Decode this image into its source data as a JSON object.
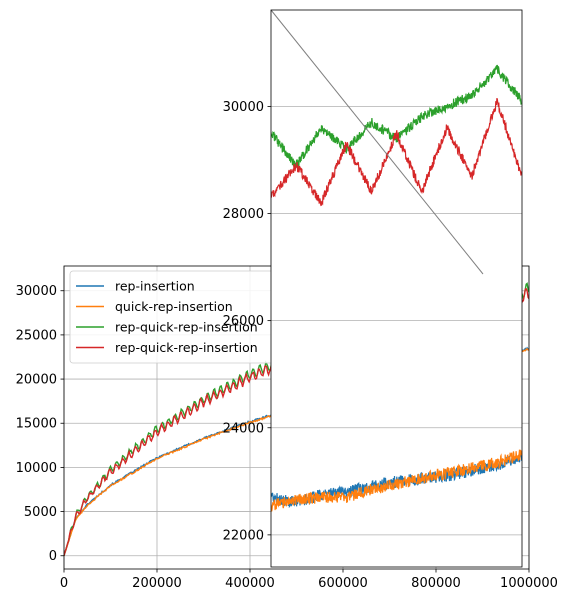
{
  "chart_data": [
    {
      "type": "line",
      "title": "",
      "xlabel": "",
      "ylabel": "",
      "xlim": [
        0,
        1000000
      ],
      "ylim": [
        -1500,
        32800
      ],
      "grid": true,
      "legend_position": "upper-left",
      "x_ticks": [
        "0",
        "200000",
        "400000",
        "600000",
        "800000",
        "1000000"
      ],
      "y_ticks": [
        "0",
        "5000",
        "10000",
        "15000",
        "20000",
        "25000",
        "30000"
      ],
      "legend_entries": [
        "rep-insertion",
        "quick-rep-insertion",
        "rep-quick-rep-insertion",
        "rep-quick-rep-insertion"
      ],
      "series": [
        {
          "name": "rep-insertion",
          "color": "#1f77b4",
          "x": [
            0,
            25000,
            50000,
            100000,
            200000,
            300000,
            400000,
            500000,
            600000,
            700000,
            800000,
            900000,
            985000,
            1000000
          ],
          "y": [
            0,
            4200,
            5800,
            8000,
            11100,
            13300,
            15200,
            16800,
            18300,
            19600,
            20900,
            22200,
            23300,
            23500
          ]
        },
        {
          "name": "quick-rep-insertion",
          "color": "#ff7f0e",
          "x": [
            0,
            25000,
            50000,
            100000,
            200000,
            300000,
            400000,
            500000,
            600000,
            700000,
            800000,
            900000,
            985000,
            1000000
          ],
          "y": [
            0,
            4100,
            5700,
            7900,
            11000,
            13200,
            15100,
            16700,
            18200,
            19500,
            20800,
            22100,
            23200,
            23400
          ]
        },
        {
          "name": "rep-quick-rep-insertion",
          "color": "#2ca02c",
          "x": [
            0,
            25000,
            50000,
            100000,
            200000,
            300000,
            400000,
            500000,
            600000,
            700000,
            800000,
            900000,
            985000,
            1000000
          ],
          "y": [
            0,
            4500,
            6600,
            9700,
            14300,
            17700,
            20500,
            22800,
            24600,
            26000,
            27200,
            28600,
            29800,
            30200
          ]
        },
        {
          "name": "rep-quick-rep-insertion",
          "color": "#d62728",
          "x": [
            0,
            25000,
            50000,
            100000,
            200000,
            300000,
            400000,
            500000,
            600000,
            700000,
            800000,
            900000,
            985000,
            1000000
          ],
          "y": [
            0,
            4400,
            6500,
            9500,
            14000,
            17400,
            20200,
            22500,
            24300,
            25700,
            26900,
            28200,
            29400,
            29700
          ]
        }
      ]
    },
    {
      "type": "line",
      "title": "",
      "xlabel": "",
      "ylabel": "",
      "xlim": [
        900000,
        1000000
      ],
      "ylim": [
        21400,
        31800
      ],
      "grid": true,
      "y_ticks": [
        "22000",
        "24000",
        "26000",
        "28000",
        "30000"
      ],
      "series": [
        {
          "name": "rep-insertion",
          "color": "#1f77b4",
          "x": [
            900000,
            910000,
            920000,
            930000,
            940000,
            950000,
            960000,
            970000,
            980000,
            990000,
            1000000
          ],
          "y": [
            22700,
            22600,
            22750,
            22800,
            22900,
            23000,
            23050,
            23100,
            23200,
            23300,
            23450
          ]
        },
        {
          "name": "quick-rep-insertion",
          "color": "#ff7f0e",
          "x": [
            900000,
            910000,
            920000,
            930000,
            940000,
            950000,
            960000,
            970000,
            980000,
            990000,
            1000000
          ],
          "y": [
            22550,
            22650,
            22700,
            22700,
            22850,
            22950,
            23050,
            23150,
            23250,
            23350,
            23500
          ]
        },
        {
          "name": "rep-quick-rep-insertion",
          "color": "#2ca02c",
          "x": [
            900000,
            910000,
            920000,
            930000,
            940000,
            950000,
            960000,
            970000,
            980000,
            990000,
            1000000
          ],
          "y": [
            29500,
            28900,
            29600,
            29200,
            29700,
            29400,
            29800,
            30000,
            30200,
            30700,
            30100
          ]
        },
        {
          "name": "rep-quick-rep-insertion",
          "color": "#d62728",
          "x": [
            900000,
            910000,
            920000,
            930000,
            940000,
            950000,
            960000,
            970000,
            980000,
            990000,
            1000000
          ],
          "y": [
            28300,
            28900,
            28200,
            29300,
            28400,
            29500,
            28400,
            29600,
            28700,
            30100,
            28700
          ]
        }
      ]
    }
  ]
}
